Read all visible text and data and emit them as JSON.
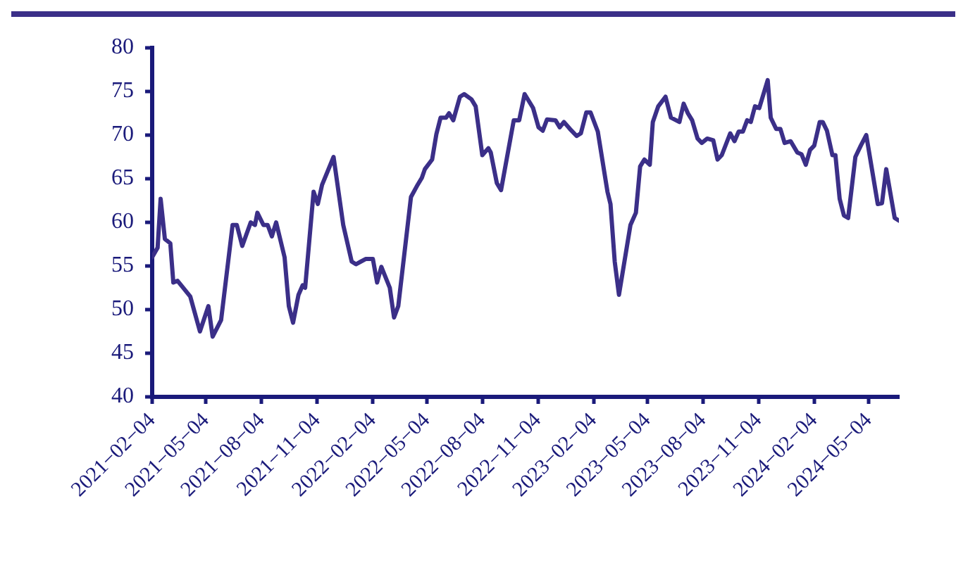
{
  "chart_data": {
    "type": "line",
    "color": "#3b2f88",
    "grid": false,
    "legend": false,
    "marker": "none",
    "line_style": "solid",
    "xlim": [
      "2021-02-04",
      "2024-06-23"
    ],
    "xticks": [
      {
        "value": "2021-02-04",
        "label": "2021−02−04"
      },
      {
        "value": "2021-05-04",
        "label": "2021−05−04"
      },
      {
        "value": "2021-08-04",
        "label": "2021−08−04"
      },
      {
        "value": "2021-11-04",
        "label": "2021−11−04"
      },
      {
        "value": "2022-02-04",
        "label": "2022−02−04"
      },
      {
        "value": "2022-05-04",
        "label": "2022−05−04"
      },
      {
        "value": "2022-08-04",
        "label": "2022−08−04"
      },
      {
        "value": "2022-11-04",
        "label": "2022−11−04"
      },
      {
        "value": "2023-02-04",
        "label": "2023−02−04"
      },
      {
        "value": "2023-05-04",
        "label": "2023−05−04"
      },
      {
        "value": "2023-08-04",
        "label": "2023−08−04"
      },
      {
        "value": "2023-11-04",
        "label": "2023−11−04"
      },
      {
        "value": "2024-02-04",
        "label": "2024−02−04"
      },
      {
        "value": "2024-05-04",
        "label": "2024−05−04"
      }
    ],
    "ylim": [
      40,
      80
    ],
    "yticks": [
      40,
      45,
      50,
      55,
      60,
      65,
      70,
      75,
      80
    ],
    "x": [
      "2021-02-04",
      "2021-02-13",
      "2021-02-18",
      "2021-02-25",
      "2021-03-06",
      "2021-03-11",
      "2021-03-18",
      "2021-04-08",
      "2021-04-24",
      "2021-05-08",
      "2021-05-15",
      "2021-05-29",
      "2021-06-17",
      "2021-06-24",
      "2021-07-03",
      "2021-07-17",
      "2021-07-24",
      "2021-07-28",
      "2021-08-07",
      "2021-08-14",
      "2021-08-21",
      "2021-08-28",
      "2021-09-11",
      "2021-09-18",
      "2021-09-25",
      "2021-10-04",
      "2021-10-11",
      "2021-10-15",
      "2021-10-29",
      "2021-11-05",
      "2021-11-12",
      "2021-12-01",
      "2021-12-17",
      "2021-12-31",
      "2022-01-07",
      "2022-01-23",
      "2022-02-04",
      "2022-02-11",
      "2022-02-18",
      "2022-03-04",
      "2022-03-11",
      "2022-03-18",
      "2022-04-08",
      "2022-04-19",
      "2022-04-26",
      "2022-05-01",
      "2022-05-13",
      "2022-05-20",
      "2022-05-27",
      "2022-06-05",
      "2022-06-10",
      "2022-06-17",
      "2022-06-28",
      "2022-07-05",
      "2022-07-17",
      "2022-07-24",
      "2022-08-04",
      "2022-08-14",
      "2022-08-18",
      "2022-08-28",
      "2022-09-04",
      "2022-09-25",
      "2022-10-04",
      "2022-10-13",
      "2022-10-27",
      "2022-11-05",
      "2022-11-12",
      "2022-11-19",
      "2022-12-03",
      "2022-12-10",
      "2022-12-17",
      "2022-12-27",
      "2023-01-07",
      "2023-01-14",
      "2023-01-23",
      "2023-01-30",
      "2023-02-11",
      "2023-02-27",
      "2023-03-04",
      "2023-03-11",
      "2023-03-18",
      "2023-04-06",
      "2023-04-15",
      "2023-04-22",
      "2023-04-29",
      "2023-05-08",
      "2023-05-13",
      "2023-05-22",
      "2023-06-03",
      "2023-06-12",
      "2023-06-26",
      "2023-07-03",
      "2023-07-10",
      "2023-07-17",
      "2023-07-26",
      "2023-08-02",
      "2023-08-11",
      "2023-08-21",
      "2023-08-28",
      "2023-09-04",
      "2023-09-18",
      "2023-09-25",
      "2023-10-02",
      "2023-10-09",
      "2023-10-16",
      "2023-10-22",
      "2023-10-29",
      "2023-11-05",
      "2023-11-19",
      "2023-11-24",
      "2023-12-03",
      "2023-12-10",
      "2023-12-17",
      "2023-12-27",
      "2024-01-07",
      "2024-01-14",
      "2024-01-21",
      "2024-01-28",
      "2024-02-04",
      "2024-02-13",
      "2024-02-18",
      "2024-02-25",
      "2024-03-05",
      "2024-03-10",
      "2024-03-17",
      "2024-03-24",
      "2024-03-31",
      "2024-04-12",
      "2024-04-21",
      "2024-04-30",
      "2024-05-19",
      "2024-05-26",
      "2024-06-02",
      "2024-06-16",
      "2024-06-23"
    ],
    "values": [
      56.0,
      57.1,
      62.7,
      58.1,
      57.6,
      53.1,
      53.3,
      51.5,
      47.5,
      50.4,
      46.9,
      48.8,
      59.7,
      59.7,
      57.3,
      60.0,
      59.7,
      61.1,
      59.7,
      59.7,
      58.4,
      60.0,
      56.0,
      50.4,
      48.5,
      51.7,
      52.8,
      52.5,
      63.5,
      62.1,
      64.3,
      67.5,
      59.7,
      55.5,
      55.2,
      55.8,
      55.8,
      53.1,
      54.9,
      52.5,
      49.1,
      50.4,
      62.9,
      64.3,
      65.1,
      66.1,
      67.2,
      70.1,
      72.0,
      72.0,
      72.5,
      71.7,
      74.4,
      74.7,
      74.1,
      73.3,
      67.7,
      68.5,
      68.0,
      64.5,
      63.7,
      71.7,
      71.7,
      74.7,
      73.1,
      70.9,
      70.5,
      71.8,
      71.7,
      70.9,
      71.5,
      70.7,
      69.9,
      70.2,
      72.6,
      72.6,
      70.4,
      63.5,
      62.1,
      55.5,
      51.7,
      59.7,
      61.1,
      66.4,
      67.2,
      66.6,
      71.5,
      73.3,
      74.4,
      72.0,
      71.5,
      73.6,
      72.5,
      71.7,
      69.6,
      69.1,
      69.6,
      69.4,
      67.2,
      67.7,
      70.2,
      69.3,
      70.4,
      70.4,
      71.7,
      71.5,
      73.3,
      73.1,
      76.3,
      72.0,
      70.7,
      70.7,
      69.1,
      69.3,
      68.0,
      67.8,
      66.6,
      68.3,
      68.8,
      71.5,
      71.5,
      70.5,
      67.7,
      67.7,
      62.7,
      60.8,
      60.5,
      67.5,
      68.8,
      70.0,
      62.1,
      62.2,
      66.1,
      60.5,
      60.2
    ]
  }
}
